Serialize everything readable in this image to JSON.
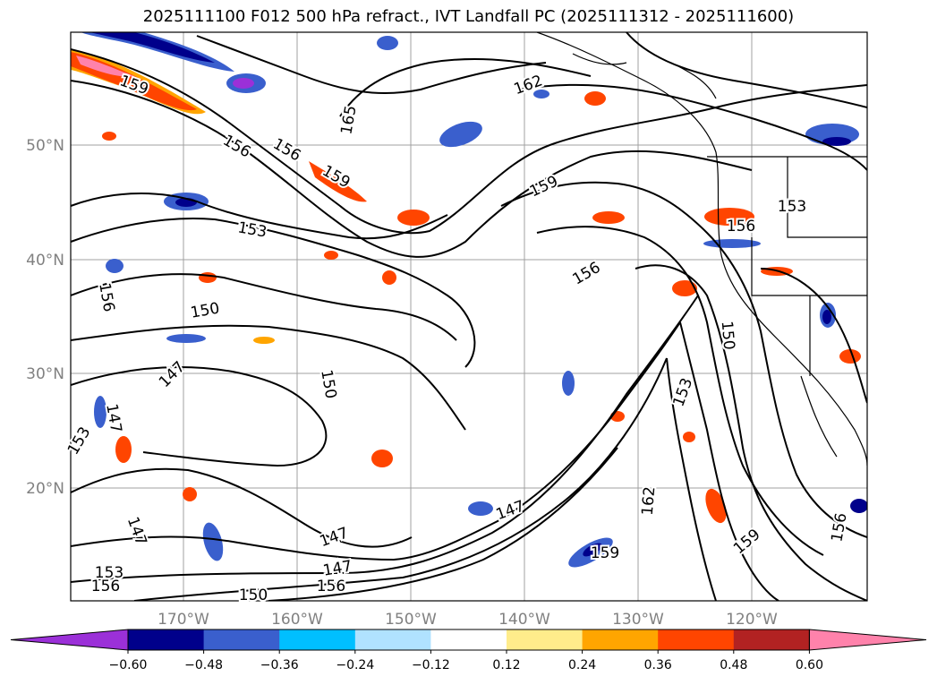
{
  "title": "2025111100 F012 500 hPa refract., IVT Landfall PC (2025111312 - 2025111600)",
  "latitude_labels": [
    "50°N",
    "40°N",
    "30°N",
    "20°N"
  ],
  "longitude_labels": [
    "170°W",
    "160°W",
    "150°W",
    "140°W",
    "130°W",
    "120°W"
  ],
  "contour_labels": [
    "159",
    "156",
    "156",
    "165",
    "162",
    "159",
    "159",
    "153",
    "156",
    "153",
    "156",
    "150",
    "156",
    "147",
    "150",
    "147",
    "153",
    "150",
    "153",
    "147",
    "162",
    "147",
    "159",
    "147",
    "147",
    "156",
    "153",
    "156",
    "150",
    "159",
    "156"
  ],
  "colorbar": {
    "ticks": [
      "−0.60",
      "−0.48",
      "−0.36",
      "−0.24",
      "−0.12",
      "0.12",
      "0.24",
      "0.36",
      "0.48",
      "0.60"
    ],
    "colors": [
      "#9b30d8",
      "#00008b",
      "#3a5fcd",
      "#00bfff",
      "#b0e2ff",
      "#ffffff",
      "#ffec8b",
      "#ffa500",
      "#ff4500",
      "#b22222",
      "#ff82ab"
    ]
  }
}
